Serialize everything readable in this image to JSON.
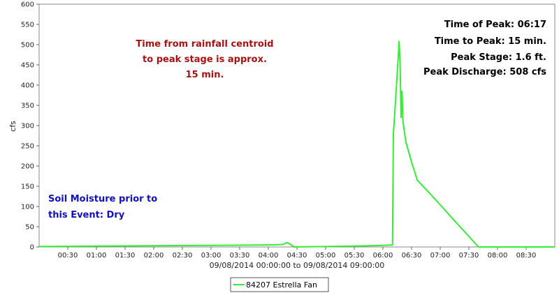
{
  "chart_data": {
    "type": "line",
    "title": "",
    "xlabel": "09/08/2014 00:00:00 to 09/08/2014 09:00:00",
    "ylabel": "cfs",
    "x_range": [
      "00:00",
      "09:00"
    ],
    "ylim": [
      0,
      600
    ],
    "y_ticks": [
      0,
      50,
      100,
      150,
      200,
      250,
      300,
      350,
      400,
      450,
      500,
      550,
      600
    ],
    "x_tick_labels": [
      "00:30",
      "01:00",
      "01:30",
      "02:00",
      "02:30",
      "03:00",
      "03:30",
      "04:00",
      "04:30",
      "05:00",
      "05:30",
      "06:00",
      "06:30",
      "07:00",
      "07:30",
      "08:00",
      "08:30"
    ],
    "grid": false,
    "legend_position": "bottom-center",
    "series": [
      {
        "name": "84207 Estrella Fan",
        "color": "#33ee33",
        "points": [
          [
            "00:00",
            1
          ],
          [
            "01:00",
            2
          ],
          [
            "02:00",
            3
          ],
          [
            "03:00",
            4
          ],
          [
            "04:00",
            5
          ],
          [
            "04:15",
            6
          ],
          [
            "04:20",
            11
          ],
          [
            "04:27",
            0
          ],
          [
            "05:00",
            1
          ],
          [
            "05:30",
            2
          ],
          [
            "06:00",
            4
          ],
          [
            "06:10",
            5
          ],
          [
            "06:11",
            280
          ],
          [
            "06:14",
            390
          ],
          [
            "06:17",
            508
          ],
          [
            "06:18",
            450
          ],
          [
            "06:19",
            320
          ],
          [
            "06:20",
            385
          ],
          [
            "06:21",
            310
          ],
          [
            "06:24",
            260
          ],
          [
            "06:30",
            210
          ],
          [
            "06:36",
            165
          ],
          [
            "06:50",
            130
          ],
          [
            "07:40",
            0
          ],
          [
            "09:00",
            0
          ]
        ]
      }
    ],
    "annotations": {
      "rainfall_note": [
        "Time from rainfall centroid",
        "to peak stage is approx.",
        "15 min."
      ],
      "soil_moisture": [
        "Soil Moisture prior to",
        "this Event: Dry"
      ],
      "peak_info": [
        "Time of Peak: 06:17",
        "Time to Peak: 15 min.",
        "Peak Stage: 1.6 ft.",
        "Peak Discharge: 508 cfs"
      ]
    },
    "colors": {
      "rainfall_note": "#aa1111",
      "soil_moisture": "#1111bb",
      "peak_info": "#000000"
    }
  }
}
